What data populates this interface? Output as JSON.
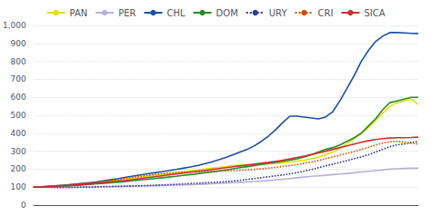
{
  "chart_data": {
    "type": "line",
    "title": "",
    "x": [
      0,
      1,
      2,
      3,
      4,
      5,
      6,
      7,
      8,
      9,
      10,
      11,
      12,
      13,
      14,
      15,
      16,
      17,
      18,
      19,
      20,
      21,
      22,
      23,
      24,
      25,
      26,
      27,
      28,
      29,
      30,
      31,
      32,
      33,
      34,
      35,
      36,
      37,
      38,
      39,
      40,
      41,
      42,
      43,
      44,
      45,
      46,
      47,
      48,
      49,
      50,
      51,
      52,
      53,
      54
    ],
    "xlim": [
      0,
      54
    ],
    "xticks": [],
    "ylim": [
      0,
      1000
    ],
    "yticks": [
      0,
      100,
      200,
      300,
      400,
      500,
      600,
      700,
      800,
      900,
      1000
    ],
    "grid": true,
    "legend": "top",
    "tick_labels": "y",
    "series": [
      {
        "name": "PAN",
        "color": "#e8e000",
        "line_style": "solid",
        "values": [
          100,
          102,
          104,
          107,
          110,
          113,
          116,
          120,
          124,
          128,
          132,
          136,
          140,
          145,
          150,
          155,
          160,
          165,
          170,
          175,
          180,
          185,
          190,
          195,
          200,
          205,
          210,
          215,
          220,
          222,
          224,
          226,
          228,
          230,
          232,
          235,
          240,
          245,
          250,
          258,
          268,
          280,
          295,
          315,
          340,
          370,
          400,
          430,
          470,
          510,
          550,
          570,
          580,
          590,
          560
        ]
      },
      {
        "name": "PER",
        "color": "#b8b0d8",
        "line_style": "solid",
        "values": [
          100,
          100,
          99,
          99,
          99,
          100,
          100,
          100,
          100,
          101,
          101,
          102,
          103,
          104,
          105,
          106,
          107,
          108,
          109,
          110,
          111,
          112,
          113,
          115,
          117,
          119,
          121,
          123,
          125,
          127,
          129,
          131,
          134,
          137,
          140,
          144,
          148,
          152,
          156,
          160,
          163,
          166,
          170,
          173,
          176,
          180,
          184,
          188,
          192,
          196,
          200,
          202,
          204,
          205,
          205
        ]
      },
      {
        "name": "CHL",
        "color": "#1a50a0",
        "line_style": "solid",
        "values": [
          100,
          102,
          104,
          107,
          110,
          113,
          117,
          121,
          125,
          130,
          136,
          142,
          148,
          155,
          162,
          168,
          174,
          180,
          186,
          192,
          198,
          205,
          212,
          220,
          230,
          240,
          252,
          265,
          280,
          295,
          310,
          330,
          355,
          385,
          420,
          460,
          495,
          495,
          490,
          485,
          480,
          490,
          520,
          580,
          650,
          720,
          800,
          860,
          910,
          940,
          960,
          960,
          958,
          956,
          955
        ]
      },
      {
        "name": "DOM",
        "color": "#2a8a2a",
        "line_style": "solid",
        "values": [
          100,
          101,
          102,
          104,
          106,
          108,
          110,
          113,
          116,
          119,
          122,
          125,
          128,
          132,
          136,
          140,
          144,
          148,
          152,
          156,
          160,
          165,
          170,
          175,
          180,
          185,
          190,
          196,
          202,
          208,
          214,
          220,
          226,
          232,
          238,
          244,
          250,
          258,
          268,
          280,
          295,
          310,
          320,
          335,
          355,
          375,
          400,
          440,
          480,
          530,
          570,
          580,
          590,
          600,
          600
        ]
      },
      {
        "name": "URY",
        "color": "#303898",
        "line_style": "dotted",
        "values": [
          100,
          100,
          100,
          99,
          99,
          98,
          99,
          100,
          101,
          102,
          103,
          104,
          105,
          106,
          107,
          108,
          109,
          110,
          112,
          114,
          116,
          118,
          120,
          122,
          124,
          126,
          128,
          131,
          134,
          138,
          143,
          148,
          153,
          158,
          163,
          168,
          174,
          181,
          189,
          198,
          208,
          218,
          228,
          238,
          248,
          258,
          268,
          280,
          295,
          310,
          325,
          335,
          340,
          348,
          355
        ]
      },
      {
        "name": "CRI",
        "color": "#d05000",
        "line_style": "dotted",
        "values": [
          100,
          102,
          104,
          107,
          110,
          113,
          116,
          120,
          124,
          128,
          133,
          138,
          143,
          149,
          155,
          160,
          165,
          170,
          174,
          178,
          181,
          183,
          185,
          187,
          188,
          189,
          190,
          191,
          192,
          194,
          196,
          199,
          202,
          206,
          210,
          215,
          220,
          226,
          233,
          240,
          248,
          258,
          268,
          278,
          288,
          298,
          310,
          322,
          334,
          345,
          352,
          355,
          350,
          345,
          340
        ]
      },
      {
        "name": "SICA",
        "color": "#c83030",
        "line_style": "solid",
        "values": [
          100,
          101,
          103,
          105,
          107,
          109,
          112,
          115,
          118,
          122,
          126,
          130,
          134,
          138,
          143,
          148,
          153,
          158,
          163,
          168,
          173,
          178,
          183,
          188,
          193,
          198,
          203,
          208,
          213,
          218,
          223,
          228,
          233,
          238,
          244,
          250,
          257,
          265,
          273,
          282,
          291,
          300,
          310,
          320,
          330,
          340,
          350,
          358,
          365,
          370,
          373,
          375,
          375,
          376,
          378
        ]
      }
    ]
  }
}
